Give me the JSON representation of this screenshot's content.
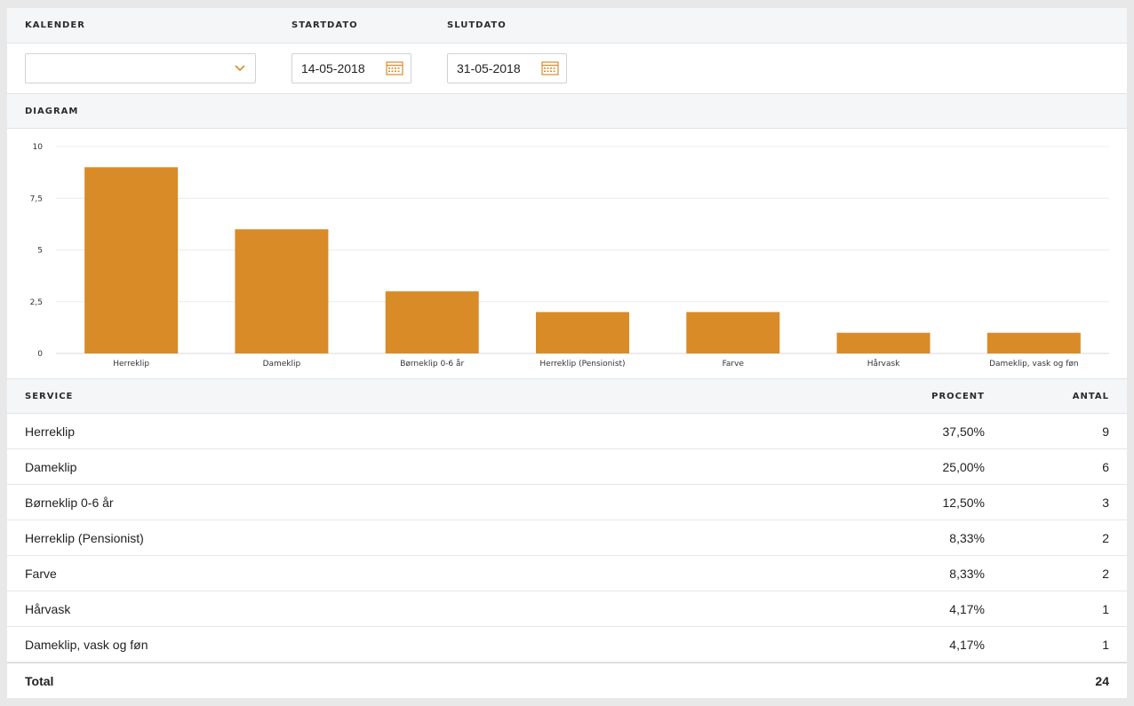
{
  "filters": {
    "calendar_label": "KALENDER",
    "calendar_value": "",
    "start_label": "STARTDATO",
    "start_value": "14-05-2018",
    "end_label": "SLUTDATO",
    "end_value": "31-05-2018"
  },
  "diagram": {
    "label": "DIAGRAM"
  },
  "chart_data": {
    "type": "bar",
    "categories": [
      "Herreklip",
      "Dameklip",
      "Børneklip 0-6 år",
      "Herreklip (Pensionist)",
      "Farve",
      "Hårvask",
      "Dameklip, vask og føn"
    ],
    "values": [
      9,
      6,
      3,
      2,
      2,
      1,
      1
    ],
    "yticks": [
      "0",
      "2,5",
      "5",
      "7,5",
      "10"
    ],
    "ylim": [
      0,
      10
    ],
    "grid": true,
    "color": "#d98b28"
  },
  "table": {
    "headers": {
      "service": "SERVICE",
      "percent": "PROCENT",
      "count": "ANTAL"
    },
    "rows": [
      {
        "service": "Herreklip",
        "percent": "37,50%",
        "count": "9"
      },
      {
        "service": "Dameklip",
        "percent": "25,00%",
        "count": "6"
      },
      {
        "service": "Børneklip 0-6 år",
        "percent": "12,50%",
        "count": "3"
      },
      {
        "service": "Herreklip (Pensionist)",
        "percent": "8,33%",
        "count": "2"
      },
      {
        "service": "Farve",
        "percent": "8,33%",
        "count": "2"
      },
      {
        "service": "Hårvask",
        "percent": "4,17%",
        "count": "1"
      },
      {
        "service": "Dameklip, vask og føn",
        "percent": "4,17%",
        "count": "1"
      }
    ],
    "total_label": "Total",
    "total_value": "24"
  },
  "colors": {
    "accent": "#d98b28",
    "header_bg": "#f5f6f7"
  }
}
